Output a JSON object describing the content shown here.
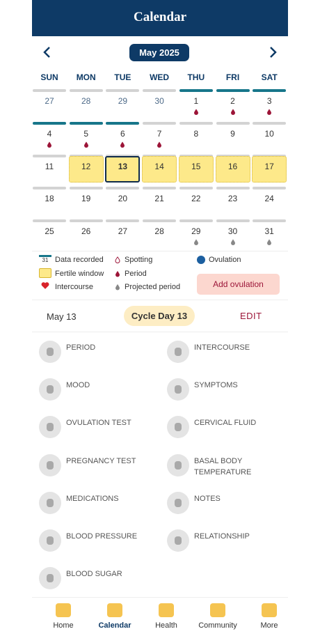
{
  "header": {
    "title": "Calendar"
  },
  "month": {
    "label": "May 2025"
  },
  "weekdays": [
    "SUN",
    "MON",
    "TUE",
    "WED",
    "THU",
    "FRI",
    "SAT"
  ],
  "weeks": [
    {
      "days": [
        27,
        28,
        29,
        30,
        1,
        2,
        3
      ],
      "other_month": [
        true,
        true,
        true,
        true,
        false,
        false,
        false
      ],
      "recorded": [
        false,
        false,
        false,
        false,
        true,
        true,
        true
      ],
      "marker": [
        "",
        "",
        "",
        "",
        "period",
        "period",
        "period"
      ],
      "fertile": [
        false,
        false,
        false,
        false,
        false,
        false,
        false
      ]
    },
    {
      "days": [
        4,
        5,
        6,
        7,
        8,
        9,
        10
      ],
      "other_month": [
        false,
        false,
        false,
        false,
        false,
        false,
        false
      ],
      "recorded": [
        true,
        true,
        true,
        false,
        false,
        false,
        false
      ],
      "marker": [
        "period",
        "period",
        "period",
        "period",
        "",
        "",
        ""
      ],
      "fertile": [
        false,
        false,
        false,
        false,
        false,
        false,
        false
      ]
    },
    {
      "days": [
        11,
        12,
        13,
        14,
        15,
        16,
        17
      ],
      "other_month": [
        false,
        false,
        false,
        false,
        false,
        false,
        false
      ],
      "recorded": [
        false,
        false,
        false,
        false,
        false,
        false,
        false
      ],
      "marker": [
        "",
        "",
        "",
        "",
        "",
        "",
        ""
      ],
      "fertile": [
        false,
        true,
        true,
        true,
        true,
        true,
        true
      ]
    },
    {
      "days": [
        18,
        19,
        20,
        21,
        22,
        23,
        24
      ],
      "other_month": [
        false,
        false,
        false,
        false,
        false,
        false,
        false
      ],
      "recorded": [
        false,
        false,
        false,
        false,
        false,
        false,
        false
      ],
      "marker": [
        "",
        "",
        "",
        "",
        "",
        "",
        ""
      ],
      "fertile": [
        false,
        false,
        false,
        false,
        false,
        false,
        false
      ]
    },
    {
      "days": [
        25,
        26,
        27,
        28,
        29,
        30,
        31
      ],
      "other_month": [
        false,
        false,
        false,
        false,
        false,
        false,
        false
      ],
      "recorded": [
        false,
        false,
        false,
        false,
        false,
        false,
        false
      ],
      "marker": [
        "",
        "",
        "",
        "",
        "projected",
        "projected",
        "projected"
      ],
      "fertile": [
        false,
        false,
        false,
        false,
        false,
        false,
        false
      ]
    }
  ],
  "today": 13,
  "legend": {
    "recorded_icon": "31",
    "recorded": "Data recorded",
    "fertile": "Fertile window",
    "intercourse": "Intercourse",
    "spotting": "Spotting",
    "period": "Period",
    "projected": "Projected period",
    "ovulation": "Ovulation",
    "add_button": "Add ovulation"
  },
  "day_bar": {
    "date": "May 13",
    "cycle": "Cycle Day 13",
    "edit": "EDIT"
  },
  "trackers": [
    "PERIOD",
    "INTERCOURSE",
    "MOOD",
    "SYMPTOMS",
    "OVULATION TEST",
    "CERVICAL FLUID",
    "PREGNANCY TEST",
    "BASAL BODY TEMPERATURE",
    "MEDICATIONS",
    "NOTES",
    "BLOOD PRESSURE",
    "RELATIONSHIP",
    "BLOOD SUGAR"
  ],
  "nav": {
    "items": [
      "Home",
      "Calendar",
      "Health",
      "Community",
      "More"
    ],
    "active": 1
  }
}
